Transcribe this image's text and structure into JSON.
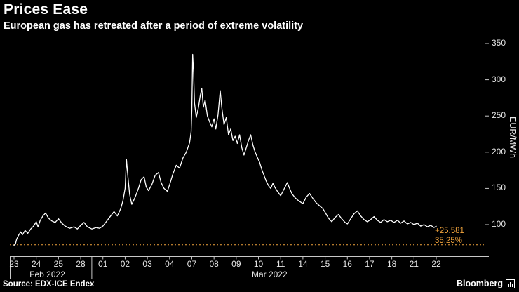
{
  "header": {
    "title": "Prices Ease",
    "subtitle": "European gas has retreated after a period of extreme volatility"
  },
  "footer": {
    "source": "Source: EDX-ICE Endex",
    "brand": "Bloomberg"
  },
  "colors": {
    "background": "#000000",
    "text": "#ffffff",
    "muted_text": "#e6e6e6",
    "axis": "#c8c8c8",
    "line": "#ffffff",
    "accent_orange": "#f0a33c"
  },
  "chart_data": {
    "type": "line",
    "title": "Prices Ease",
    "subtitle": "European gas has retreated after a period of extreme volatility",
    "ylabel": "EUR/MWh",
    "xlabel": "",
    "x_range": [
      "23 Feb 2022",
      "22 Mar 2022"
    ],
    "ylim": [
      56,
      357
    ],
    "y_ticks": [
      100,
      150,
      200,
      250,
      300,
      350
    ],
    "x_tick_labels": [
      "23",
      "24",
      "25",
      "28",
      "01",
      "02",
      "03",
      "04",
      "07",
      "08",
      "09",
      "10",
      "11",
      "14",
      "15",
      "16",
      "17",
      "18",
      "21",
      "22"
    ],
    "month_labels": [
      {
        "label": "Feb 2022",
        "tick_center": 1.5
      },
      {
        "label": "Mar 2022",
        "tick_center": 11.5
      }
    ],
    "month_boundary_after_tick": 3,
    "grid": false,
    "legend": "none",
    "reference_line": {
      "value": 72.2,
      "style": "dotted"
    },
    "annotations": {
      "change_label": "+25.581",
      "percent_label": "35.25%"
    },
    "last_value": 97.78,
    "series": [
      {
        "name": "European gas price (EUR/MWh)",
        "points": [
          [
            0,
            71.5
          ],
          [
            0.06,
            73
          ],
          [
            0.12,
            80
          ],
          [
            0.2,
            85
          ],
          [
            0.3,
            90
          ],
          [
            0.38,
            86
          ],
          [
            0.5,
            92
          ],
          [
            0.62,
            88
          ],
          [
            0.75,
            94
          ],
          [
            0.88,
            98
          ],
          [
            1.0,
            104
          ],
          [
            1.08,
            97
          ],
          [
            1.18,
            106
          ],
          [
            1.3,
            112
          ],
          [
            1.42,
            116
          ],
          [
            1.55,
            109
          ],
          [
            1.7,
            105
          ],
          [
            1.85,
            103
          ],
          [
            2.0,
            108
          ],
          [
            2.15,
            102
          ],
          [
            2.3,
            98
          ],
          [
            2.5,
            95
          ],
          [
            2.7,
            97
          ],
          [
            2.85,
            94
          ],
          [
            3.0,
            99
          ],
          [
            3.15,
            103
          ],
          [
            3.3,
            97
          ],
          [
            3.5,
            94
          ],
          [
            3.7,
            96
          ],
          [
            3.85,
            95
          ],
          [
            4.0,
            98
          ],
          [
            4.15,
            104
          ],
          [
            4.3,
            110
          ],
          [
            4.5,
            118
          ],
          [
            4.65,
            112
          ],
          [
            4.8,
            122
          ],
          [
            4.9,
            133
          ],
          [
            5.0,
            150
          ],
          [
            5.06,
            190
          ],
          [
            5.12,
            168
          ],
          [
            5.2,
            142
          ],
          [
            5.3,
            128
          ],
          [
            5.45,
            138
          ],
          [
            5.6,
            150
          ],
          [
            5.72,
            162
          ],
          [
            5.85,
            166
          ],
          [
            5.95,
            152
          ],
          [
            6.05,
            147
          ],
          [
            6.2,
            155
          ],
          [
            6.35,
            168
          ],
          [
            6.5,
            172
          ],
          [
            6.62,
            158
          ],
          [
            6.75,
            150
          ],
          [
            6.9,
            146
          ],
          [
            7.0,
            155
          ],
          [
            7.15,
            170
          ],
          [
            7.3,
            182
          ],
          [
            7.45,
            178
          ],
          [
            7.6,
            192
          ],
          [
            7.75,
            200
          ],
          [
            7.9,
            213
          ],
          [
            7.97,
            228
          ],
          [
            8.0,
            258
          ],
          [
            8.04,
            335
          ],
          [
            8.08,
            310
          ],
          [
            8.12,
            268
          ],
          [
            8.2,
            248
          ],
          [
            8.3,
            262
          ],
          [
            8.38,
            278
          ],
          [
            8.45,
            288
          ],
          [
            8.52,
            262
          ],
          [
            8.6,
            272
          ],
          [
            8.7,
            250
          ],
          [
            8.8,
            242
          ],
          [
            8.9,
            235
          ],
          [
            9.0,
            246
          ],
          [
            9.08,
            232
          ],
          [
            9.18,
            252
          ],
          [
            9.28,
            285
          ],
          [
            9.35,
            262
          ],
          [
            9.45,
            238
          ],
          [
            9.55,
            248
          ],
          [
            9.65,
            224
          ],
          [
            9.75,
            232
          ],
          [
            9.85,
            216
          ],
          [
            9.95,
            222
          ],
          [
            10.05,
            212
          ],
          [
            10.15,
            224
          ],
          [
            10.25,
            206
          ],
          [
            10.35,
            196
          ],
          [
            10.45,
            206
          ],
          [
            10.55,
            216
          ],
          [
            10.65,
            224
          ],
          [
            10.75,
            210
          ],
          [
            10.85,
            200
          ],
          [
            10.95,
            193
          ],
          [
            11.05,
            186
          ],
          [
            11.15,
            176
          ],
          [
            11.25,
            168
          ],
          [
            11.35,
            160
          ],
          [
            11.45,
            154
          ],
          [
            11.55,
            150
          ],
          [
            11.65,
            157
          ],
          [
            11.75,
            151
          ],
          [
            11.85,
            146
          ],
          [
            12.0,
            140
          ],
          [
            12.1,
            146
          ],
          [
            12.2,
            152
          ],
          [
            12.3,
            158
          ],
          [
            12.4,
            150
          ],
          [
            12.5,
            143
          ],
          [
            12.65,
            137
          ],
          [
            12.8,
            133
          ],
          [
            13.0,
            129
          ],
          [
            13.15,
            138
          ],
          [
            13.3,
            143
          ],
          [
            13.45,
            136
          ],
          [
            13.6,
            130
          ],
          [
            13.75,
            126
          ],
          [
            13.9,
            122
          ],
          [
            14.0,
            117
          ],
          [
            14.15,
            109
          ],
          [
            14.3,
            104
          ],
          [
            14.45,
            110
          ],
          [
            14.6,
            114
          ],
          [
            14.75,
            108
          ],
          [
            14.9,
            103
          ],
          [
            15.0,
            101
          ],
          [
            15.15,
            108
          ],
          [
            15.3,
            115
          ],
          [
            15.45,
            119
          ],
          [
            15.6,
            112
          ],
          [
            15.75,
            107
          ],
          [
            15.9,
            104
          ],
          [
            16.05,
            107
          ],
          [
            16.2,
            111
          ],
          [
            16.35,
            106
          ],
          [
            16.5,
            103
          ],
          [
            16.65,
            107
          ],
          [
            16.8,
            104
          ],
          [
            16.95,
            106
          ],
          [
            17.1,
            103
          ],
          [
            17.25,
            106
          ],
          [
            17.4,
            102
          ],
          [
            17.55,
            105
          ],
          [
            17.7,
            101
          ],
          [
            17.85,
            103
          ],
          [
            18.0,
            100
          ],
          [
            18.15,
            102
          ],
          [
            18.3,
            98
          ],
          [
            18.45,
            100
          ],
          [
            18.6,
            97
          ],
          [
            18.75,
            99
          ],
          [
            18.9,
            96
          ],
          [
            19.0,
            97.78
          ]
        ]
      }
    ]
  }
}
